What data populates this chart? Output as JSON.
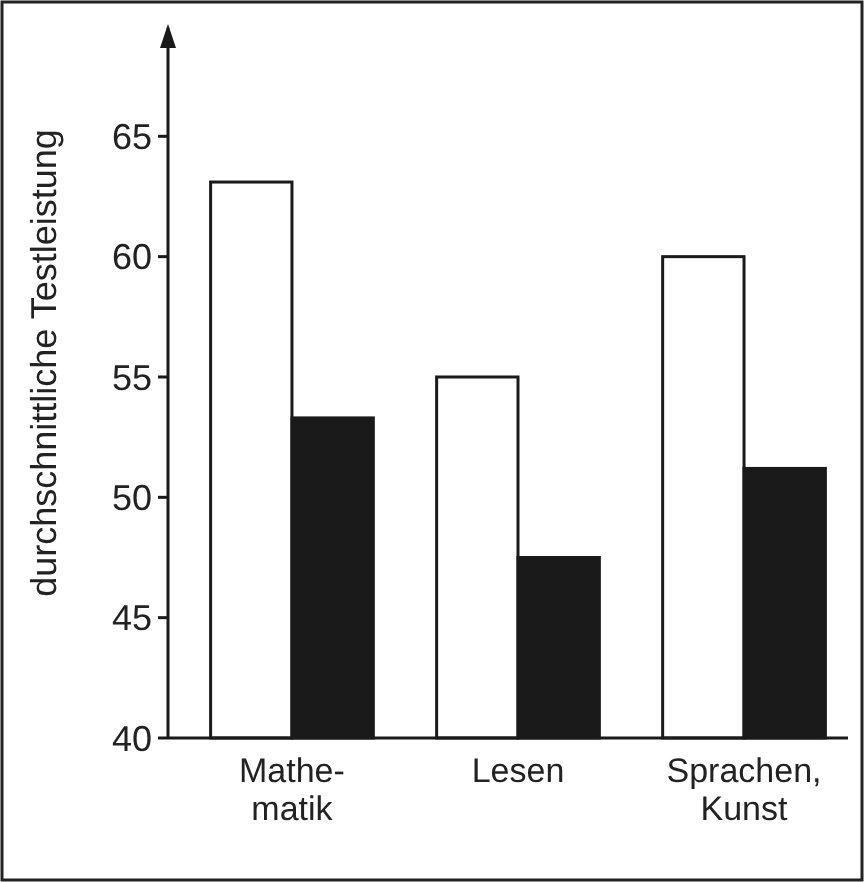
{
  "chart_data": {
    "type": "bar",
    "ylabel": "durchschnittliche Testleistung",
    "categories": [
      "Mathe-\nmatik",
      "Lesen",
      "Sprachen,\nKunst"
    ],
    "series": [
      {
        "color": "#ffffff",
        "values": [
          63.1,
          55,
          60
        ]
      },
      {
        "color": "#1a1a1a",
        "values": [
          53.3,
          47.5,
          51.2
        ]
      }
    ],
    "ylim": [
      40,
      69.5
    ],
    "yticks": [
      40,
      45,
      50,
      55,
      60,
      65
    ],
    "grid": false
  }
}
